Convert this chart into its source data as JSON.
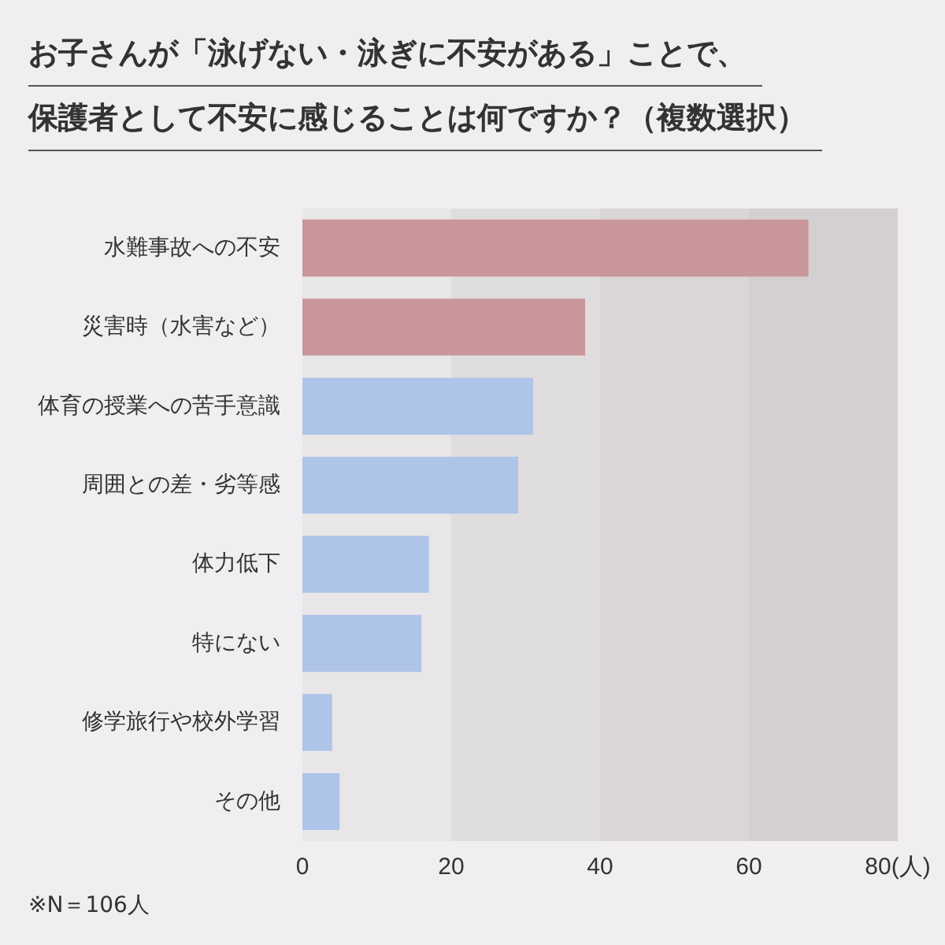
{
  "chart_data": {
    "type": "bar",
    "orientation": "horizontal",
    "title": "お子さんが「泳げない・泳ぎに不安がある」ことで、",
    "subtitle": "保護者として不安に感じることは何ですか？（複数選択）",
    "categories": [
      "水難事故への不安",
      "災害時（水害など）",
      "体育の授業への苦手意識",
      "周囲との差・劣等感",
      "体力低下",
      "特にない",
      "修学旅行や校外学習",
      "その他"
    ],
    "values": [
      68,
      38,
      31,
      29,
      17,
      16,
      4,
      5
    ],
    "colors": [
      "#c9979b",
      "#c9979b",
      "#aec4e8",
      "#aec4e8",
      "#aec4e8",
      "#aec4e8",
      "#aec4e8",
      "#aec4e8"
    ],
    "xlim": [
      0,
      80
    ],
    "xticks": [
      0,
      20,
      40,
      {
        "value": 60,
        "label": "60"
      },
      {
        "value": 80,
        "label": "80(人)"
      }
    ],
    "bands": [
      {
        "axis": "x",
        "from": 0,
        "to": 20,
        "color": "#e9e6e8"
      },
      {
        "axis": "x",
        "from": 20,
        "to": 40,
        "color": "#e0dddf"
      },
      {
        "axis": "x",
        "from": 40,
        "to": 60,
        "color": "#dad6d6"
      },
      {
        "axis": "x",
        "from": 60,
        "to": 80,
        "color": "#d4d0cf"
      }
    ],
    "grid": false,
    "legend": false,
    "annotations": [
      "※N＝106人"
    ]
  }
}
